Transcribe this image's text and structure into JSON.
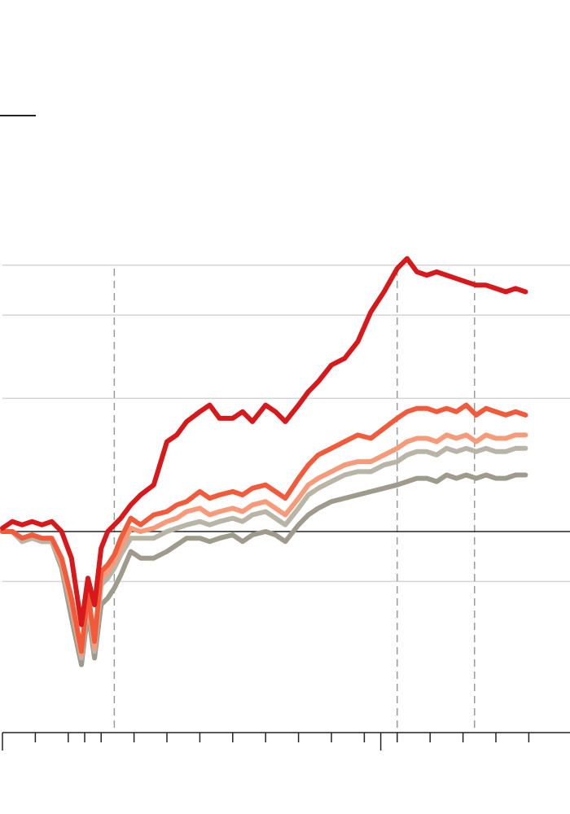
{
  "chart_data": {
    "type": "line",
    "title": "",
    "xlabel": "",
    "ylabel": "",
    "x_range": [
      0,
      16
    ],
    "x_ticks": [
      0,
      1,
      2,
      2.5,
      3,
      4,
      5,
      6,
      7,
      8,
      9,
      10,
      11,
      11.5,
      12,
      13,
      14,
      15,
      16
    ],
    "x_major_ticks": [
      0,
      11.5
    ],
    "event_lines_x": [
      3.4,
      12,
      14.35
    ],
    "y_range": [
      -0.35,
      0.95
    ],
    "y_gridlines": [
      0.8,
      0.65,
      0.4,
      -0.15
    ],
    "baseline_y": 0,
    "series": [
      {
        "color": "#d7191c",
        "x": [
          0,
          0.3,
          0.6,
          0.9,
          1.2,
          1.5,
          1.8,
          2.1,
          2.4,
          2.6,
          2.8,
          3.0,
          3.2,
          3.4,
          3.6,
          3.9,
          4.2,
          4.6,
          5.0,
          5.3,
          5.6,
          6.0,
          6.3,
          6.6,
          7.0,
          7.3,
          7.6,
          8.0,
          8.3,
          8.6,
          9.0,
          9.3,
          9.6,
          10.0,
          10.4,
          10.8,
          11.2,
          11.6,
          12.0,
          12.3,
          12.6,
          12.9,
          13.2,
          13.5,
          13.8,
          14.1,
          14.4,
          14.7,
          15.0,
          15.3,
          15.6,
          15.9
        ],
        "values": [
          0.01,
          0.03,
          0.02,
          0.03,
          0.02,
          0.03,
          0.0,
          -0.08,
          -0.28,
          -0.14,
          -0.22,
          -0.05,
          0.0,
          0.02,
          0.04,
          0.08,
          0.11,
          0.14,
          0.27,
          0.29,
          0.33,
          0.36,
          0.38,
          0.34,
          0.34,
          0.36,
          0.33,
          0.38,
          0.36,
          0.33,
          0.38,
          0.42,
          0.45,
          0.5,
          0.52,
          0.57,
          0.66,
          0.72,
          0.79,
          0.82,
          0.78,
          0.77,
          0.78,
          0.77,
          0.76,
          0.75,
          0.74,
          0.74,
          0.73,
          0.72,
          0.73,
          0.72
        ]
      },
      {
        "color": "#f15a3a",
        "x": [
          0,
          0.3,
          0.6,
          0.9,
          1.2,
          1.5,
          1.8,
          2.1,
          2.4,
          2.6,
          2.8,
          3.0,
          3.2,
          3.4,
          3.6,
          3.9,
          4.2,
          4.6,
          5.0,
          5.3,
          5.6,
          6.0,
          6.3,
          6.6,
          7.0,
          7.3,
          7.6,
          8.0,
          8.3,
          8.6,
          9.0,
          9.3,
          9.6,
          10.0,
          10.4,
          10.8,
          11.2,
          11.6,
          12.0,
          12.3,
          12.6,
          12.9,
          13.2,
          13.5,
          13.8,
          14.1,
          14.4,
          14.7,
          15.0,
          15.3,
          15.6,
          15.9
        ],
        "values": [
          0.0,
          0.0,
          -0.02,
          -0.01,
          -0.02,
          -0.02,
          -0.08,
          -0.2,
          -0.36,
          -0.18,
          -0.33,
          -0.12,
          -0.1,
          -0.07,
          -0.02,
          0.04,
          0.02,
          0.05,
          0.06,
          0.08,
          0.09,
          0.12,
          0.1,
          0.11,
          0.12,
          0.11,
          0.13,
          0.14,
          0.12,
          0.1,
          0.16,
          0.2,
          0.23,
          0.25,
          0.27,
          0.29,
          0.28,
          0.31,
          0.34,
          0.36,
          0.37,
          0.37,
          0.36,
          0.37,
          0.36,
          0.38,
          0.35,
          0.37,
          0.36,
          0.35,
          0.36,
          0.35
        ]
      },
      {
        "color": "#f79a7a",
        "x": [
          0,
          0.3,
          0.6,
          0.9,
          1.2,
          1.5,
          1.8,
          2.1,
          2.4,
          2.6,
          2.8,
          3.0,
          3.2,
          3.4,
          3.6,
          3.9,
          4.2,
          4.6,
          5.0,
          5.3,
          5.6,
          6.0,
          6.3,
          6.6,
          7.0,
          7.3,
          7.6,
          8.0,
          8.3,
          8.6,
          9.0,
          9.3,
          9.6,
          10.0,
          10.4,
          10.8,
          11.2,
          11.6,
          12.0,
          12.3,
          12.6,
          12.9,
          13.2,
          13.5,
          13.8,
          14.1,
          14.4,
          14.7,
          15.0,
          15.3,
          15.6,
          15.9
        ],
        "values": [
          0.0,
          0.0,
          -0.02,
          -0.01,
          -0.02,
          -0.02,
          -0.09,
          -0.22,
          -0.37,
          -0.19,
          -0.35,
          -0.14,
          -0.12,
          -0.09,
          -0.05,
          0.01,
          0.0,
          0.01,
          0.03,
          0.04,
          0.06,
          0.07,
          0.05,
          0.06,
          0.07,
          0.06,
          0.08,
          0.09,
          0.07,
          0.05,
          0.1,
          0.14,
          0.16,
          0.18,
          0.2,
          0.21,
          0.21,
          0.23,
          0.25,
          0.27,
          0.28,
          0.28,
          0.27,
          0.29,
          0.28,
          0.29,
          0.27,
          0.29,
          0.28,
          0.28,
          0.29,
          0.29
        ]
      },
      {
        "color": "#b8b4a6",
        "x": [
          0,
          0.3,
          0.6,
          0.9,
          1.2,
          1.5,
          1.8,
          2.1,
          2.4,
          2.6,
          2.8,
          3.0,
          3.2,
          3.4,
          3.6,
          3.9,
          4.2,
          4.6,
          5.0,
          5.3,
          5.6,
          6.0,
          6.3,
          6.6,
          7.0,
          7.3,
          7.6,
          8.0,
          8.3,
          8.6,
          9.0,
          9.3,
          9.6,
          10.0,
          10.4,
          10.8,
          11.2,
          11.6,
          12.0,
          12.3,
          12.6,
          12.9,
          13.2,
          13.5,
          13.8,
          14.1,
          14.4,
          14.7,
          15.0,
          15.3,
          15.6,
          15.9
        ],
        "values": [
          0.0,
          0.0,
          -0.03,
          -0.02,
          -0.03,
          -0.03,
          -0.1,
          -0.23,
          -0.38,
          -0.21,
          -0.36,
          -0.16,
          -0.14,
          -0.11,
          -0.07,
          -0.02,
          -0.02,
          -0.02,
          0.0,
          0.01,
          0.02,
          0.03,
          0.02,
          0.03,
          0.04,
          0.03,
          0.05,
          0.06,
          0.04,
          0.02,
          0.07,
          0.11,
          0.13,
          0.15,
          0.17,
          0.18,
          0.18,
          0.2,
          0.21,
          0.23,
          0.24,
          0.24,
          0.23,
          0.25,
          0.24,
          0.25,
          0.24,
          0.25,
          0.24,
          0.24,
          0.25,
          0.25
        ]
      },
      {
        "color": "#9e9a8c",
        "x": [
          0,
          0.3,
          0.6,
          0.9,
          1.2,
          1.5,
          1.8,
          2.1,
          2.4,
          2.6,
          2.8,
          3.0,
          3.2,
          3.4,
          3.6,
          3.9,
          4.2,
          4.6,
          5.0,
          5.3,
          5.6,
          6.0,
          6.3,
          6.6,
          7.0,
          7.3,
          7.6,
          8.0,
          8.3,
          8.6,
          9.0,
          9.3,
          9.6,
          10.0,
          10.4,
          10.8,
          11.2,
          11.6,
          12.0,
          12.3,
          12.6,
          12.9,
          13.2,
          13.5,
          13.8,
          14.1,
          14.4,
          14.7,
          15.0,
          15.3,
          15.6,
          15.9
        ],
        "values": [
          0.0,
          0.0,
          -0.03,
          -0.02,
          -0.03,
          -0.03,
          -0.11,
          -0.26,
          -0.4,
          -0.24,
          -0.38,
          -0.22,
          -0.2,
          -0.17,
          -0.13,
          -0.06,
          -0.08,
          -0.08,
          -0.06,
          -0.04,
          -0.02,
          -0.02,
          -0.03,
          -0.02,
          -0.01,
          -0.03,
          -0.01,
          0.0,
          -0.01,
          -0.03,
          0.02,
          0.05,
          0.07,
          0.09,
          0.1,
          0.11,
          0.12,
          0.13,
          0.14,
          0.15,
          0.16,
          0.16,
          0.15,
          0.17,
          0.16,
          0.17,
          0.16,
          0.17,
          0.16,
          0.16,
          0.17,
          0.17
        ]
      }
    ]
  }
}
